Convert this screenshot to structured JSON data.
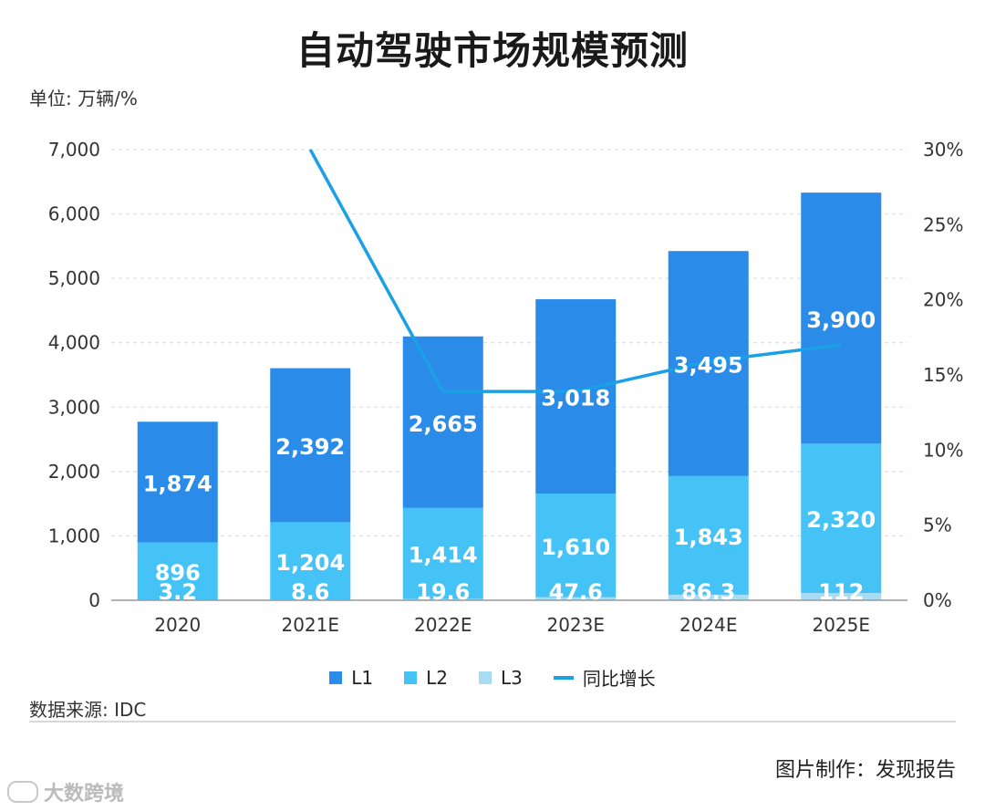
{
  "title": "自动驾驶市场规模预测",
  "unit_label": "单位: 万辆/%",
  "source_label": "数据来源: IDC",
  "maker_label": "图片制作：发现报告",
  "watermark": "大数跨境",
  "colors": {
    "L1": "#2a8ce8",
    "L2": "#45c3f7",
    "L3": "#a8dcf4",
    "line": "#1aa0e6",
    "grid": "#d8d8d8"
  },
  "legend": [
    {
      "label": "L1",
      "kind": "box",
      "color": "#2a8ce8"
    },
    {
      "label": "L2",
      "kind": "box",
      "color": "#45c3f7"
    },
    {
      "label": "L3",
      "kind": "box",
      "color": "#a8dcf4"
    },
    {
      "label": "同比增长",
      "kind": "line",
      "color": "#1aa0e6"
    }
  ],
  "chart_data": {
    "type": "bar",
    "stacked": true,
    "categories": [
      "2020",
      "2021E",
      "2022E",
      "2023E",
      "2024E",
      "2025E"
    ],
    "series": [
      {
        "name": "L3",
        "values": [
          3.2,
          8.6,
          19.6,
          47.6,
          86.3,
          112
        ],
        "labels": [
          "3.2",
          "8.6",
          "19.6",
          "47.6",
          "86.3",
          "112"
        ]
      },
      {
        "name": "L2",
        "values": [
          896,
          1204,
          1414,
          1610,
          1843,
          2320
        ],
        "labels": [
          "896",
          "1,204",
          "1,414",
          "1,610",
          "1,843",
          "2,320"
        ]
      },
      {
        "name": "L1",
        "values": [
          1874,
          2392,
          2665,
          3018,
          3495,
          3900
        ],
        "labels": [
          "1,874",
          "2,392",
          "2,665",
          "3,018",
          "3,495",
          "3,900"
        ]
      }
    ],
    "line": {
      "name": "同比增长",
      "axis": "right",
      "values": [
        null,
        30,
        13.9,
        13.9,
        15.9,
        17.0
      ]
    },
    "y_left": {
      "min": 0,
      "max": 7000,
      "ticks": [
        "0",
        "1,000",
        "2,000",
        "3,000",
        "4,000",
        "5,000",
        "6,000",
        "7,000"
      ]
    },
    "y_right": {
      "min": 0,
      "max": 30,
      "ticks": [
        "0%",
        "5%",
        "10%",
        "15%",
        "20%",
        "25%",
        "30%"
      ]
    },
    "grid": true,
    "legend_position": "bottom"
  }
}
